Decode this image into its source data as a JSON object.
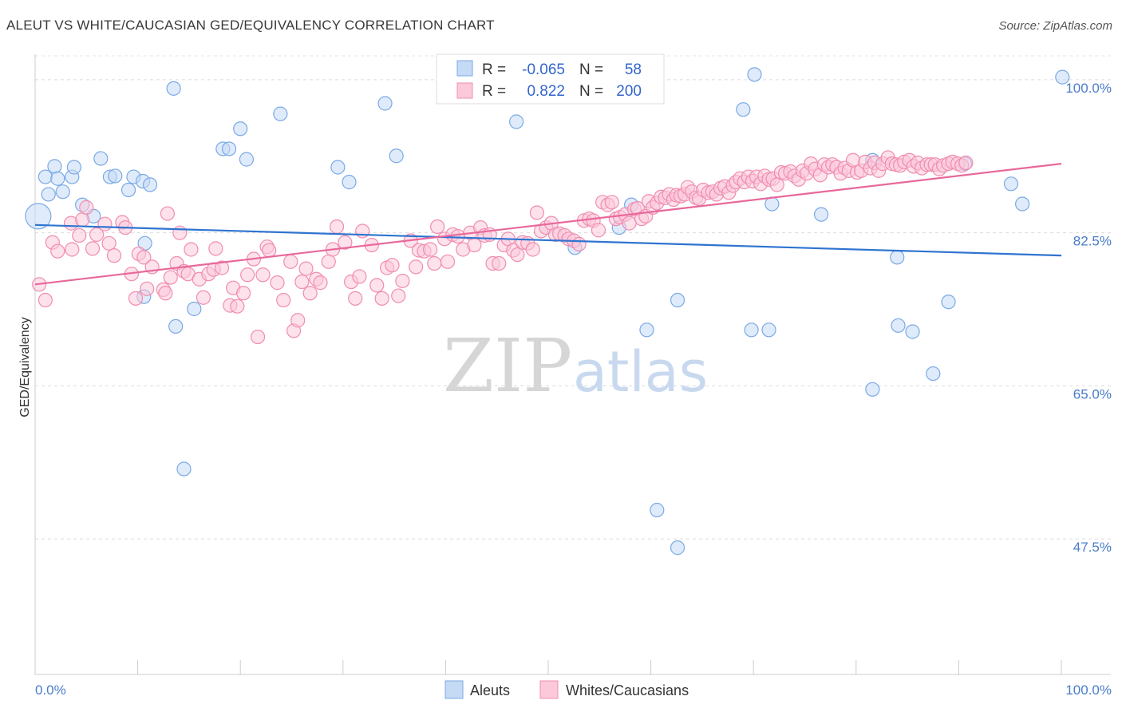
{
  "title": "ALEUT VS WHITE/CAUCASIAN GED/EQUIVALENCY CORRELATION CHART",
  "source": "Source: ZipAtlas.com",
  "watermark": {
    "zip": "ZIP",
    "atlas": "atlas"
  },
  "chart_data": {
    "type": "scatter",
    "xlabel": "",
    "ylabel": "GED/Equivalency",
    "xlim": [
      0,
      100
    ],
    "ylim": [
      32,
      102
    ],
    "x_ticks": [
      {
        "value": 0,
        "label": "0.0%"
      },
      {
        "value": 100,
        "label": "100.0%"
      }
    ],
    "y_ticks": [
      {
        "value": 100,
        "label": "100.0%"
      },
      {
        "value": 82.5,
        "label": "82.5%"
      },
      {
        "value": 65,
        "label": "65.0%"
      },
      {
        "value": 47.5,
        "label": "47.5%"
      }
    ],
    "legend": {
      "placement": "top-center",
      "rows": [
        {
          "r_label": "R =",
          "r_value": "-0.065",
          "n_label": "N =",
          "n_value": "58"
        },
        {
          "r_label": "R =",
          "r_value": "0.822",
          "n_label": "N =",
          "n_value": "200"
        }
      ]
    },
    "series": [
      {
        "name": "Aleuts",
        "color": "#7aa9e6",
        "fill": "#c5daf5",
        "line_color": "#2f74d0",
        "trend": {
          "x": [
            0,
            100
          ],
          "y": [
            83.4,
            79.9
          ]
        },
        "points": [
          [
            0.3,
            84.4
          ],
          [
            1.0,
            88.9
          ],
          [
            1.3,
            86.9
          ],
          [
            1.9,
            90.1
          ],
          [
            2.2,
            88.7
          ],
          [
            2.7,
            87.2
          ],
          [
            3.6,
            88.9
          ],
          [
            3.8,
            90.0
          ],
          [
            4.6,
            85.7
          ],
          [
            5.7,
            84.4
          ],
          [
            6.4,
            91.0
          ],
          [
            7.3,
            88.9
          ],
          [
            7.8,
            89.0
          ],
          [
            9.1,
            87.4
          ],
          [
            9.6,
            88.9
          ],
          [
            10.5,
            88.4
          ],
          [
            10.6,
            75.2
          ],
          [
            10.7,
            81.3
          ],
          [
            11.2,
            88.0
          ],
          [
            13.5,
            99.0
          ],
          [
            13.7,
            71.8
          ],
          [
            14.5,
            55.5
          ],
          [
            15.5,
            73.8
          ],
          [
            18.3,
            92.1
          ],
          [
            18.9,
            92.1
          ],
          [
            20.0,
            94.4
          ],
          [
            20.6,
            90.9
          ],
          [
            23.9,
            96.1
          ],
          [
            29.5,
            90.0
          ],
          [
            30.6,
            88.3
          ],
          [
            34.1,
            97.3
          ],
          [
            35.2,
            91.3
          ],
          [
            46.9,
            95.2
          ],
          [
            52.6,
            80.8
          ],
          [
            56.9,
            83.1
          ],
          [
            58.1,
            85.7
          ],
          [
            59.6,
            71.4
          ],
          [
            60.3,
            100.5
          ],
          [
            60.6,
            50.8
          ],
          [
            62.6,
            46.5
          ],
          [
            62.6,
            74.8
          ],
          [
            69.0,
            96.6
          ],
          [
            69.8,
            71.4
          ],
          [
            70.1,
            100.6
          ],
          [
            71.5,
            71.4
          ],
          [
            71.8,
            85.8
          ],
          [
            76.6,
            84.6
          ],
          [
            81.6,
            90.8
          ],
          [
            81.6,
            64.6
          ],
          [
            84.0,
            79.7
          ],
          [
            84.1,
            71.9
          ],
          [
            85.5,
            71.2
          ],
          [
            87.5,
            66.4
          ],
          [
            89.0,
            74.6
          ],
          [
            95.1,
            88.1
          ],
          [
            96.2,
            85.8
          ],
          [
            100.1,
            100.3
          ],
          [
            90.6,
            90.4
          ]
        ]
      },
      {
        "name": "Whites/Caucasians",
        "color": "#f08db0",
        "fill": "#fbc9da",
        "line_color": "#e8689a",
        "trend": {
          "x": [
            0,
            100
          ],
          "y": [
            76.6,
            90.4
          ]
        },
        "points": [
          [
            0.4,
            76.6
          ],
          [
            1.0,
            74.8
          ],
          [
            1.7,
            81.4
          ],
          [
            2.2,
            80.4
          ],
          [
            3.5,
            83.6
          ],
          [
            3.6,
            80.6
          ],
          [
            4.3,
            82.2
          ],
          [
            4.6,
            84.0
          ],
          [
            5.0,
            85.4
          ],
          [
            5.6,
            80.7
          ],
          [
            6.0,
            82.3
          ],
          [
            6.8,
            83.5
          ],
          [
            7.2,
            81.3
          ],
          [
            7.7,
            79.9
          ],
          [
            8.5,
            83.7
          ],
          [
            8.8,
            83.1
          ],
          [
            9.4,
            77.8
          ],
          [
            9.8,
            75.0
          ],
          [
            10.1,
            80.1
          ],
          [
            10.6,
            79.7
          ],
          [
            10.9,
            76.1
          ],
          [
            11.4,
            78.6
          ],
          [
            12.5,
            76.0
          ],
          [
            12.7,
            75.6
          ],
          [
            12.9,
            84.7
          ],
          [
            13.2,
            77.4
          ],
          [
            13.8,
            79.0
          ],
          [
            14.1,
            82.5
          ],
          [
            14.5,
            78.1
          ],
          [
            14.9,
            77.8
          ],
          [
            15.2,
            80.6
          ],
          [
            16.0,
            77.2
          ],
          [
            16.4,
            75.1
          ],
          [
            16.9,
            77.8
          ],
          [
            17.4,
            78.3
          ],
          [
            17.6,
            80.7
          ],
          [
            18.2,
            78.5
          ],
          [
            19.0,
            74.2
          ],
          [
            19.3,
            76.2
          ],
          [
            19.7,
            74.1
          ],
          [
            20.3,
            75.6
          ],
          [
            20.7,
            77.7
          ],
          [
            21.3,
            79.5
          ],
          [
            21.7,
            70.6
          ],
          [
            22.2,
            77.7
          ],
          [
            22.6,
            80.9
          ],
          [
            22.8,
            80.5
          ],
          [
            23.6,
            76.8
          ],
          [
            24.2,
            74.8
          ],
          [
            24.9,
            79.2
          ],
          [
            25.2,
            71.3
          ],
          [
            25.6,
            72.5
          ],
          [
            26.0,
            76.9
          ],
          [
            26.4,
            78.4
          ],
          [
            26.8,
            75.6
          ],
          [
            27.4,
            77.2
          ],
          [
            27.8,
            76.8
          ],
          [
            28.6,
            79.2
          ],
          [
            29.0,
            80.6
          ],
          [
            29.4,
            83.2
          ],
          [
            30.2,
            81.4
          ],
          [
            30.8,
            76.9
          ],
          [
            31.2,
            75.0
          ],
          [
            31.6,
            77.5
          ],
          [
            31.9,
            82.7
          ],
          [
            32.8,
            81.1
          ],
          [
            33.3,
            76.5
          ],
          [
            33.8,
            75.0
          ],
          [
            34.3,
            78.5
          ],
          [
            34.8,
            78.8
          ],
          [
            35.4,
            75.3
          ],
          [
            35.8,
            77.0
          ],
          [
            36.6,
            81.6
          ],
          [
            37.1,
            78.6
          ],
          [
            37.4,
            80.5
          ],
          [
            37.9,
            80.4
          ],
          [
            38.5,
            80.6
          ],
          [
            38.9,
            79.0
          ],
          [
            39.2,
            83.2
          ],
          [
            39.9,
            81.8
          ],
          [
            40.2,
            79.2
          ],
          [
            40.7,
            82.3
          ],
          [
            41.2,
            82.1
          ],
          [
            41.7,
            80.6
          ],
          [
            42.4,
            82.5
          ],
          [
            42.8,
            81.1
          ],
          [
            43.4,
            83.1
          ],
          [
            43.8,
            82.2
          ],
          [
            44.3,
            82.3
          ],
          [
            44.6,
            79.0
          ],
          [
            45.2,
            79.0
          ],
          [
            45.7,
            81.1
          ],
          [
            46.1,
            81.8
          ],
          [
            46.6,
            80.5
          ],
          [
            47.0,
            80.0
          ],
          [
            47.5,
            81.4
          ],
          [
            48.0,
            81.3
          ],
          [
            48.5,
            80.6
          ],
          [
            48.9,
            84.8
          ],
          [
            49.3,
            82.7
          ],
          [
            49.8,
            83.1
          ],
          [
            50.3,
            83.6
          ],
          [
            50.7,
            82.3
          ],
          [
            51.1,
            82.4
          ],
          [
            51.6,
            82.2
          ],
          [
            52.0,
            81.8
          ],
          [
            52.5,
            81.6
          ],
          [
            53.0,
            81.2
          ],
          [
            53.5,
            83.9
          ],
          [
            54.0,
            84.1
          ],
          [
            54.4,
            83.9
          ],
          [
            54.9,
            82.8
          ],
          [
            55.3,
            86.0
          ],
          [
            55.8,
            85.7
          ],
          [
            56.2,
            86.0
          ],
          [
            56.6,
            84.1
          ],
          [
            57.0,
            84.3
          ],
          [
            57.5,
            84.6
          ],
          [
            57.9,
            83.6
          ],
          [
            58.4,
            85.2
          ],
          [
            58.7,
            85.3
          ],
          [
            59.1,
            84.1
          ],
          [
            59.5,
            84.4
          ],
          [
            59.8,
            86.1
          ],
          [
            60.2,
            85.4
          ],
          [
            60.6,
            85.9
          ],
          [
            61.0,
            86.6
          ],
          [
            61.4,
            86.5
          ],
          [
            61.8,
            86.9
          ],
          [
            62.2,
            86.3
          ],
          [
            62.5,
            86.8
          ],
          [
            62.9,
            86.7
          ],
          [
            63.3,
            86.9
          ],
          [
            63.6,
            87.7
          ],
          [
            64.0,
            87.2
          ],
          [
            64.4,
            86.5
          ],
          [
            64.7,
            86.4
          ],
          [
            65.1,
            87.4
          ],
          [
            65.6,
            87.1
          ],
          [
            66.0,
            87.2
          ],
          [
            66.4,
            86.9
          ],
          [
            66.8,
            87.6
          ],
          [
            67.2,
            87.8
          ],
          [
            67.6,
            87.1
          ],
          [
            68.0,
            87.9
          ],
          [
            68.3,
            88.3
          ],
          [
            68.7,
            88.7
          ],
          [
            69.1,
            88.3
          ],
          [
            69.5,
            88.9
          ],
          [
            69.9,
            88.4
          ],
          [
            70.3,
            88.9
          ],
          [
            70.7,
            88.1
          ],
          [
            71.1,
            89.0
          ],
          [
            71.5,
            88.6
          ],
          [
            71.9,
            88.7
          ],
          [
            72.3,
            88.0
          ],
          [
            72.7,
            89.4
          ],
          [
            73.1,
            89.3
          ],
          [
            73.6,
            89.5
          ],
          [
            74.0,
            89.0
          ],
          [
            74.4,
            88.6
          ],
          [
            74.8,
            89.6
          ],
          [
            75.2,
            89.3
          ],
          [
            75.6,
            90.4
          ],
          [
            76.0,
            89.8
          ],
          [
            76.5,
            89.1
          ],
          [
            76.9,
            90.3
          ],
          [
            77.3,
            90.0
          ],
          [
            77.7,
            90.3
          ],
          [
            78.1,
            90.0
          ],
          [
            78.5,
            89.3
          ],
          [
            78.9,
            89.9
          ],
          [
            79.3,
            89.6
          ],
          [
            79.7,
            90.8
          ],
          [
            80.1,
            89.4
          ],
          [
            80.5,
            89.6
          ],
          [
            80.9,
            90.6
          ],
          [
            81.4,
            89.9
          ],
          [
            81.8,
            90.5
          ],
          [
            82.2,
            89.6
          ],
          [
            82.6,
            90.4
          ],
          [
            83.1,
            91.1
          ],
          [
            83.5,
            90.4
          ],
          [
            83.9,
            90.3
          ],
          [
            84.3,
            90.2
          ],
          [
            84.7,
            90.6
          ],
          [
            85.2,
            90.8
          ],
          [
            85.6,
            90.1
          ],
          [
            86.0,
            90.5
          ],
          [
            86.4,
            89.9
          ],
          [
            86.9,
            90.3
          ],
          [
            87.3,
            90.3
          ],
          [
            87.7,
            90.3
          ],
          [
            88.1,
            89.8
          ],
          [
            88.5,
            90.2
          ],
          [
            89.0,
            90.4
          ],
          [
            89.4,
            90.6
          ],
          [
            89.9,
            90.4
          ],
          [
            90.3,
            90.2
          ],
          [
            90.7,
            90.5
          ]
        ]
      }
    ]
  }
}
